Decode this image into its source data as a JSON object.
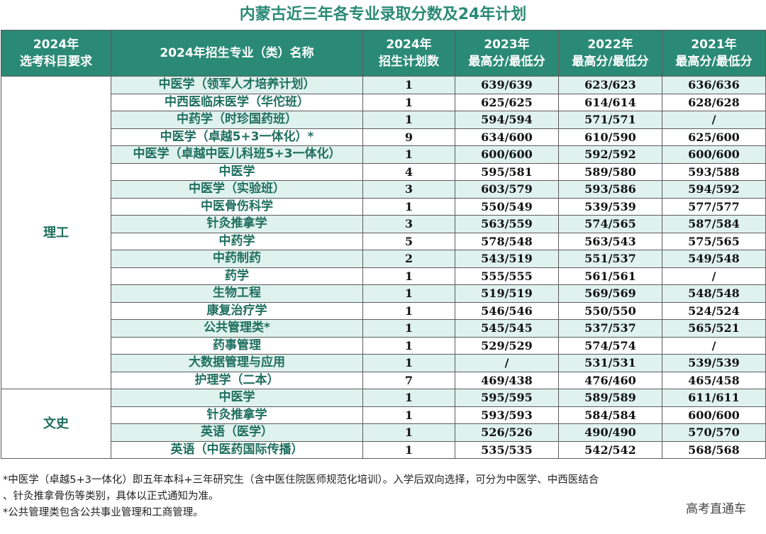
{
  "title": "内蒙古近三年各专业录取分数及24年计划",
  "headers": {
    "subject_line1": "2024年",
    "subject_line2": "选考科目要求",
    "major": "2024年招生专业（类）名称",
    "plan_line1": "2024年",
    "plan_line2": "招生计划数",
    "y2023_line1": "2023年",
    "y2023_line2": "最高分/最低分",
    "y2022_line1": "2022年",
    "y2022_line2": "最高分/最低分",
    "y2021_line1": "2021年",
    "y2021_line2": "最高分/最低分"
  },
  "categories": {
    "science": "理工",
    "arts": "文史"
  },
  "rows": [
    {
      "major": "中医学（领军人才培养计划）",
      "plan": "1",
      "s2023": "639/639",
      "s2022": "623/623",
      "s2021": "636/636"
    },
    {
      "major": "中西医临床医学（华佗班）",
      "plan": "1",
      "s2023": "625/625",
      "s2022": "614/614",
      "s2021": "628/628"
    },
    {
      "major": "中药学（时珍国药班）",
      "plan": "1",
      "s2023": "594/594",
      "s2022": "571/571",
      "s2021": "/"
    },
    {
      "major": "中医学（卓越5+3一体化）*",
      "plan": "9",
      "s2023": "634/600",
      "s2022": "610/590",
      "s2021": "625/600"
    },
    {
      "major": "中医学（卓越中医儿科班5+3一体化）",
      "plan": "1",
      "s2023": "600/600",
      "s2022": "592/592",
      "s2021": "600/600"
    },
    {
      "major": "中医学",
      "plan": "4",
      "s2023": "595/581",
      "s2022": "589/580",
      "s2021": "593/588"
    },
    {
      "major": "中医学（实验班）",
      "plan": "3",
      "s2023": "603/579",
      "s2022": "593/586",
      "s2021": "594/592"
    },
    {
      "major": "中医骨伤科学",
      "plan": "1",
      "s2023": "550/549",
      "s2022": "539/539",
      "s2021": "577/577"
    },
    {
      "major": "针灸推拿学",
      "plan": "3",
      "s2023": "563/559",
      "s2022": "574/565",
      "s2021": "587/584"
    },
    {
      "major": "中药学",
      "plan": "5",
      "s2023": "578/548",
      "s2022": "563/543",
      "s2021": "575/565"
    },
    {
      "major": "中药制药",
      "plan": "2",
      "s2023": "543/519",
      "s2022": "551/537",
      "s2021": "549/548"
    },
    {
      "major": "药学",
      "plan": "1",
      "s2023": "555/555",
      "s2022": "561/561",
      "s2021": "/"
    },
    {
      "major": "生物工程",
      "plan": "1",
      "s2023": "519/519",
      "s2022": "569/569",
      "s2021": "548/548"
    },
    {
      "major": "康复治疗学",
      "plan": "1",
      "s2023": "546/546",
      "s2022": "550/550",
      "s2021": "524/524"
    },
    {
      "major": "公共管理类*",
      "plan": "1",
      "s2023": "545/545",
      "s2022": "537/537",
      "s2021": "565/521"
    },
    {
      "major": "药事管理",
      "plan": "1",
      "s2023": "529/529",
      "s2022": "574/574",
      "s2021": "/"
    },
    {
      "major": "大数据管理与应用",
      "plan": "1",
      "s2023": "/",
      "s2022": "531/531",
      "s2021": "539/539"
    },
    {
      "major": "护理学（二本）",
      "plan": "7",
      "s2023": "469/438",
      "s2022": "476/460",
      "s2021": "465/458"
    },
    {
      "major": "中医学",
      "plan": "1",
      "s2023": "595/595",
      "s2022": "589/589",
      "s2021": "611/611"
    },
    {
      "major": "针灸推拿学",
      "plan": "1",
      "s2023": "593/593",
      "s2022": "584/584",
      "s2021": "600/600"
    },
    {
      "major": "英语（医学）",
      "plan": "1",
      "s2023": "526/526",
      "s2022": "490/490",
      "s2021": "570/570"
    },
    {
      "major": "英语（中医药国际传播）",
      "plan": "1",
      "s2023": "535/535",
      "s2022": "542/542",
      "s2021": "568/568"
    }
  ],
  "notes": {
    "line1": "*中医学（卓越5+3一体化）即五年本科+三年研究生（含中医住院医师规范化培训）。入学后双向选择，可分为中医学、中西医结合",
    "line2": "、针灸推拿骨伤等类别，具体以正式通知为准。",
    "line3": "*公共管理类包含公共事业管理和工商管理。"
  },
  "watermark": "高考直通车",
  "colors": {
    "header_bg": "#2a8a76",
    "alt_row_bg": "#dff2ee",
    "title_text": "#2a8a76"
  }
}
